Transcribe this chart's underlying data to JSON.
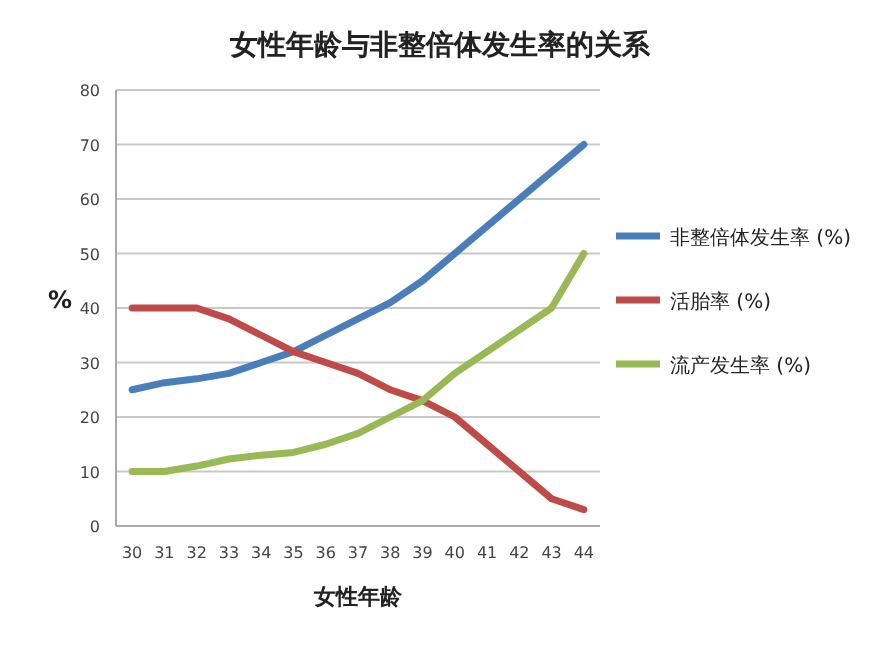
{
  "chart_data": {
    "type": "line",
    "title": "女性年龄与非整倍体发生率的关系",
    "xlabel": "女性年龄",
    "ylabel": "%",
    "categories": [
      "30",
      "31",
      "32",
      "33",
      "34",
      "35",
      "36",
      "37",
      "38",
      "39",
      "40",
      "41",
      "42",
      "43",
      "44"
    ],
    "series": [
      {
        "name": "非整倍体发生率 (%)",
        "color": "#4a7ebb",
        "values": [
          25,
          26.3,
          27,
          28,
          30,
          32,
          35,
          38,
          41,
          45,
          50,
          55,
          60,
          65,
          70
        ]
      },
      {
        "name": "活胎率 (%)",
        "color": "#be4b48",
        "values": [
          40,
          40,
          40,
          38,
          35,
          32,
          30,
          28,
          25,
          23,
          20,
          15,
          10,
          5,
          3
        ]
      },
      {
        "name": "流产发生率 (%)",
        "color": "#98b954",
        "values": [
          10,
          10,
          11,
          12.3,
          13,
          13.5,
          15,
          17,
          20,
          23,
          28,
          32,
          36,
          40,
          50
        ]
      }
    ],
    "ylim": [
      0,
      80
    ],
    "yticks": [
      0,
      10,
      20,
      30,
      40,
      50,
      60,
      70,
      80
    ],
    "grid": "y",
    "legend": "right",
    "marker": "none",
    "line_style": "solid"
  }
}
